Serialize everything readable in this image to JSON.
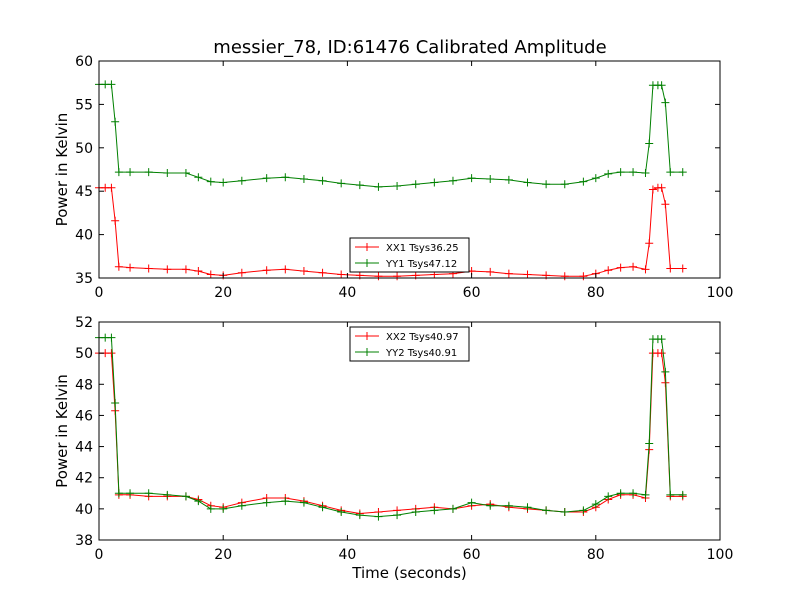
{
  "chart_data": [
    {
      "type": "line",
      "title": "messier_78, ID:61476 Calibrated Amplitude",
      "xlabel": "",
      "ylabel": "Power in Kelvin",
      "xlim": [
        0,
        100
      ],
      "ylim": [
        35,
        60
      ],
      "xticks": [
        0,
        20,
        40,
        60,
        80,
        100
      ],
      "yticks": [
        35,
        40,
        45,
        50,
        55,
        60
      ],
      "legend_position": "lower-center",
      "series": [
        {
          "name": "XX1 Tsys36.25",
          "color": "#ff0000",
          "x": [
            0,
            1,
            2,
            2.6,
            3.2,
            5,
            8,
            11,
            14,
            16,
            18,
            20,
            23,
            27,
            30,
            33,
            36,
            39,
            42,
            45,
            48,
            51,
            54,
            57,
            60,
            63,
            66,
            69,
            72,
            75,
            78,
            80,
            82,
            84,
            86,
            88,
            88.6,
            89.2,
            90,
            90.6,
            91.2,
            92,
            94
          ],
          "y": [
            45.4,
            45.4,
            45.4,
            41.6,
            36.3,
            36.2,
            36.1,
            36.0,
            36.0,
            35.8,
            35.4,
            35.3,
            35.6,
            35.9,
            36.0,
            35.8,
            35.6,
            35.4,
            35.3,
            35.2,
            35.2,
            35.3,
            35.4,
            35.5,
            35.8,
            35.7,
            35.5,
            35.4,
            35.3,
            35.2,
            35.2,
            35.5,
            35.9,
            36.2,
            36.3,
            36.0,
            39.0,
            45.2,
            45.4,
            45.4,
            43.5,
            36.1,
            36.1
          ]
        },
        {
          "name": "YY1 Tsys47.12",
          "color": "#008000",
          "x": [
            0,
            1,
            2,
            2.6,
            3.2,
            5,
            8,
            11,
            14,
            16,
            18,
            20,
            23,
            27,
            30,
            33,
            36,
            39,
            42,
            45,
            48,
            51,
            54,
            57,
            60,
            63,
            66,
            69,
            72,
            75,
            78,
            80,
            82,
            84,
            86,
            88,
            88.6,
            89.2,
            90,
            90.6,
            91.2,
            92,
            94
          ],
          "y": [
            57.3,
            57.3,
            57.3,
            53.0,
            47.2,
            47.2,
            47.2,
            47.1,
            47.1,
            46.6,
            46.1,
            46.0,
            46.2,
            46.5,
            46.6,
            46.4,
            46.2,
            45.9,
            45.7,
            45.5,
            45.6,
            45.8,
            46.0,
            46.2,
            46.5,
            46.4,
            46.3,
            46.0,
            45.8,
            45.8,
            46.1,
            46.5,
            47.0,
            47.2,
            47.2,
            47.1,
            50.5,
            57.2,
            57.2,
            57.2,
            55.2,
            47.2,
            47.2
          ]
        }
      ]
    },
    {
      "type": "line",
      "title": "",
      "xlabel": "Time (seconds)",
      "ylabel": "Power in Kelvin",
      "xlim": [
        0,
        100
      ],
      "ylim": [
        38,
        52
      ],
      "xticks": [
        0,
        20,
        40,
        60,
        80,
        100
      ],
      "yticks": [
        38,
        40,
        42,
        44,
        46,
        48,
        50,
        52
      ],
      "legend_position": "upper-center",
      "series": [
        {
          "name": "XX2 Tsys40.97",
          "color": "#ff0000",
          "x": [
            0,
            1,
            2,
            2.6,
            3.2,
            5,
            8,
            11,
            14,
            16,
            18,
            20,
            23,
            27,
            30,
            33,
            36,
            39,
            42,
            45,
            48,
            51,
            54,
            57,
            60,
            63,
            66,
            69,
            72,
            75,
            78,
            80,
            82,
            84,
            86,
            88,
            88.6,
            89.2,
            90,
            90.6,
            91.2,
            92,
            94
          ],
          "y": [
            50.0,
            50.0,
            50.0,
            46.3,
            40.9,
            40.9,
            40.8,
            40.8,
            40.8,
            40.6,
            40.2,
            40.1,
            40.4,
            40.7,
            40.7,
            40.5,
            40.2,
            39.9,
            39.7,
            39.8,
            39.9,
            40.0,
            40.1,
            40.0,
            40.2,
            40.3,
            40.1,
            40.0,
            39.9,
            39.8,
            39.8,
            40.1,
            40.6,
            40.9,
            40.9,
            40.7,
            43.8,
            50.0,
            50.0,
            50.0,
            48.1,
            40.8,
            40.8
          ]
        },
        {
          "name": "YY2 Tsys40.91",
          "color": "#008000",
          "x": [
            0,
            1,
            2,
            2.6,
            3.2,
            5,
            8,
            11,
            14,
            16,
            18,
            20,
            23,
            27,
            30,
            33,
            36,
            39,
            42,
            45,
            48,
            51,
            54,
            57,
            60,
            63,
            66,
            69,
            72,
            75,
            78,
            80,
            82,
            84,
            86,
            88,
            88.6,
            89.2,
            90,
            90.6,
            91.2,
            92,
            94
          ],
          "y": [
            51.0,
            51.0,
            51.0,
            46.8,
            41.0,
            41.0,
            41.0,
            40.9,
            40.8,
            40.5,
            40.0,
            40.0,
            40.2,
            40.4,
            40.5,
            40.4,
            40.1,
            39.8,
            39.6,
            39.5,
            39.6,
            39.8,
            39.9,
            40.0,
            40.4,
            40.2,
            40.2,
            40.1,
            39.9,
            39.8,
            39.9,
            40.3,
            40.8,
            41.0,
            41.0,
            40.9,
            44.2,
            50.9,
            50.9,
            50.9,
            48.8,
            40.9,
            40.9
          ]
        }
      ]
    }
  ]
}
